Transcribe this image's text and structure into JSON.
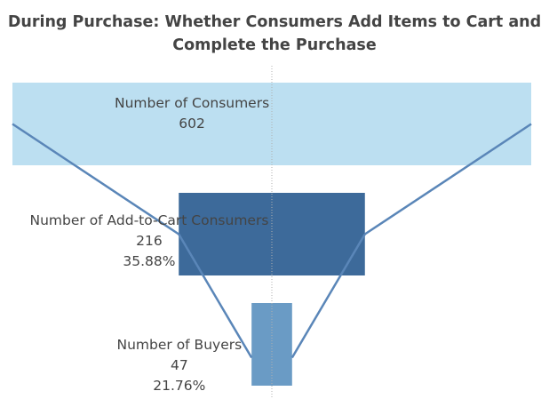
{
  "chart_data": {
    "type": "funnel",
    "title_lines": [
      "During Purchase: Whether Consumers Add Items to Cart and",
      "Complete the Purchase"
    ],
    "stages": [
      {
        "name": "Number of Consumers",
        "value": 602,
        "percent": "",
        "color": "#bcdff1"
      },
      {
        "name": "Number of Add-to-Cart Consumers",
        "value": 216,
        "percent": "35.88%",
        "color": "#3d6a9a"
      },
      {
        "name": "Number of Buyers",
        "value": 47,
        "percent": "21.76%",
        "color": "#6a9bc5"
      }
    ],
    "connector_color": "#5a86b8",
    "center_line": "dotted"
  }
}
